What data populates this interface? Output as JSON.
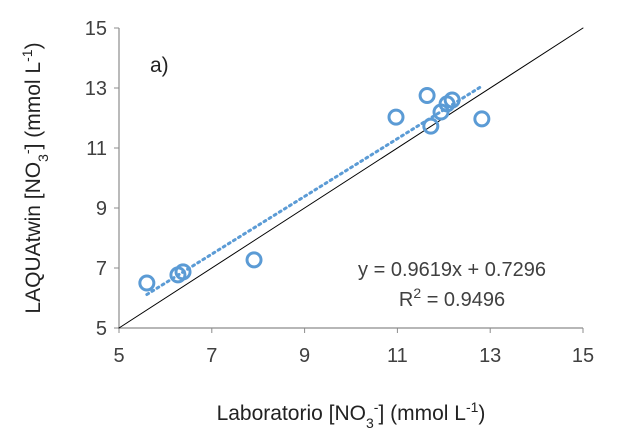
{
  "chart_data": {
    "type": "scatter",
    "annotation": "a)",
    "equation": "y = 0.9619x + 0.7296",
    "r2_label": [
      {
        "text": "R"
      },
      {
        "text": "2",
        "shift": "super"
      },
      {
        "text": " = 0.9496"
      }
    ],
    "xlabel": [
      {
        "text": "Laboratorio [NO"
      },
      {
        "text": "3",
        "shift": "sub"
      },
      {
        "text": "-",
        "shift": "super"
      },
      {
        "text": "] (mmol L"
      },
      {
        "text": "-1",
        "shift": "super"
      },
      {
        "text": ")"
      }
    ],
    "ylabel": [
      {
        "text": "LAQUAtwin  [NO"
      },
      {
        "text": "3",
        "shift": "sub"
      },
      {
        "text": "-",
        "shift": "super"
      },
      {
        "text": "] (mmol L"
      },
      {
        "text": "-1",
        "shift": "super"
      },
      {
        "text": ")"
      }
    ],
    "xlim": [
      5,
      15
    ],
    "xticks": [
      5,
      7,
      9,
      11,
      13,
      15
    ],
    "ylim": [
      5,
      15
    ],
    "yticks": [
      5,
      7,
      9,
      11,
      13,
      15
    ],
    "series": [
      {
        "color": "#5b9bd5",
        "x": [
          5.6,
          6.27,
          6.38,
          7.91,
          10.97,
          11.64,
          11.72,
          11.94,
          12.07,
          12.18,
          12.82
        ],
        "values": [
          6.5,
          6.77,
          6.87,
          7.27,
          12.03,
          12.75,
          11.73,
          12.2,
          12.47,
          12.6,
          11.97
        ]
      },
      {
        "kind": "trendline",
        "color": "#5b9bd5",
        "x": [
          5.6,
          12.8
        ],
        "values": [
          6.116,
          13.042
        ]
      },
      {
        "kind": "identity",
        "color": "#000000",
        "x": [
          5,
          15
        ],
        "values": [
          5,
          15
        ]
      }
    ]
  }
}
